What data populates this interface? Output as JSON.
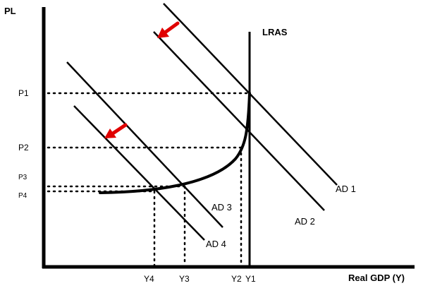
{
  "axes": {
    "y_label": "PL",
    "x_label": "Real GDP (Y)"
  },
  "price_levels": [
    "P1",
    "P2",
    "P3",
    "P4"
  ],
  "outputs": [
    "Y4",
    "Y3",
    "Y2",
    "Y1"
  ],
  "curves": {
    "lras": "LRAS",
    "ad1": "AD 1",
    "ad2": "AD 2",
    "ad3": "AD 3",
    "ad4": "AD 4"
  },
  "colors": {
    "line": "#000000",
    "arrow": "#e00000"
  },
  "icons": [
    "shift-arrow-icon"
  ]
}
